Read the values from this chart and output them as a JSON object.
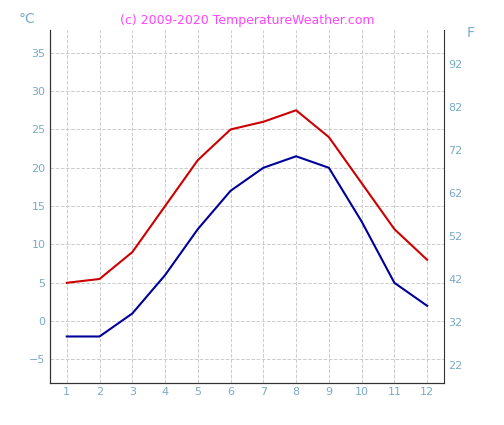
{
  "months": [
    1,
    2,
    3,
    4,
    5,
    6,
    7,
    8,
    9,
    10,
    11,
    12
  ],
  "air_temp_c": [
    5.0,
    5.5,
    9.0,
    15.0,
    21.0,
    25.0,
    26.0,
    27.5,
    24.0,
    18.0,
    12.0,
    8.0
  ],
  "water_temp_c": [
    -2.0,
    -2.0,
    1.0,
    6.0,
    12.0,
    17.0,
    20.0,
    21.5,
    20.0,
    13.0,
    5.0,
    2.0
  ],
  "air_color": "#cc0000",
  "water_color": "#000099",
  "ylim_c": [
    -8,
    38
  ],
  "ylim_f": [
    18,
    100
  ],
  "yticks_c": [
    -5,
    0,
    5,
    10,
    15,
    20,
    25,
    30,
    35
  ],
  "yticks_f": [
    22,
    32,
    42,
    52,
    62,
    72,
    82,
    92
  ],
  "background_color": "#ffffff",
  "grid_color": "#cccccc",
  "title": "(c) 2009-2020 TemperatureWeather.com",
  "title_color": "#ff44ff",
  "ylabel_left": "°C",
  "ylabel_right": "F",
  "tick_label_color": "#7aaac8",
  "line_width": 1.5,
  "spine_color": "#333333",
  "tick_fontsize": 8,
  "title_fontsize": 9
}
